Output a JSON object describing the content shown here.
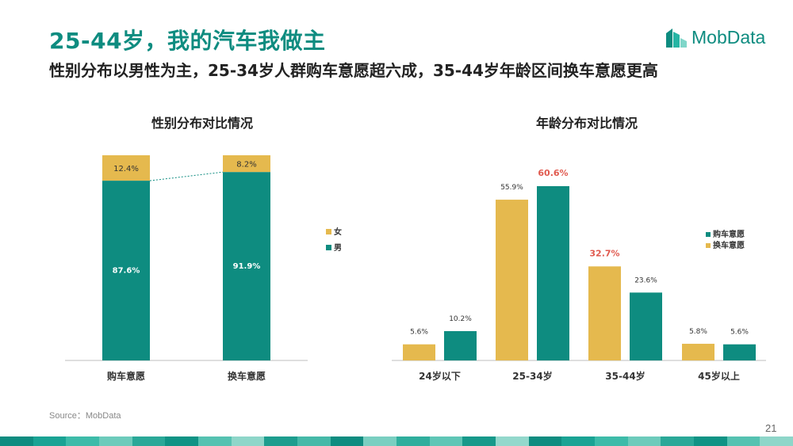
{
  "header": {
    "title": "25-44岁，我的汽车我做主",
    "subtitle": "性别分布以男性为主，25-34岁人群购车意愿超六成，35-44岁年龄区间换车意愿更高",
    "logo_text": "MobData"
  },
  "footer": {
    "source": "Source：MobData",
    "page_number": "21"
  },
  "colors": {
    "teal": "#0e8c80",
    "gold": "#e5b94e",
    "highlight_red": "#e05a4f"
  },
  "chart_data": [
    {
      "type": "bar",
      "stacked": true,
      "normalized": true,
      "title": "性别分布对比情况",
      "categories": [
        "购车意愿",
        "换车意愿"
      ],
      "series": [
        {
          "name": "男",
          "values": [
            87.6,
            91.9
          ],
          "labels": [
            "87.6%",
            "91.9%"
          ],
          "color": "#0e8c80"
        },
        {
          "name": "女",
          "values": [
            12.4,
            8.2
          ],
          "labels": [
            "12.4%",
            "8.2%"
          ],
          "color": "#e5b94e"
        }
      ],
      "legend": {
        "position": "right",
        "order": [
          "女",
          "男"
        ]
      },
      "connector_line": true,
      "grid": false
    },
    {
      "type": "bar",
      "title": "年龄分布对比情况",
      "categories": [
        "24岁以下",
        "25-34岁",
        "35-44岁",
        "45岁以上"
      ],
      "series": [
        {
          "name": "换车意愿",
          "values": [
            5.6,
            55.9,
            32.7,
            5.8
          ],
          "labels": [
            "5.6%",
            "55.9%",
            "32.7%",
            "5.8%"
          ],
          "color": "#e5b94e"
        },
        {
          "name": "购车意愿",
          "values": [
            10.2,
            60.6,
            23.6,
            5.6
          ],
          "labels": [
            "10.2%",
            "60.6%",
            "23.6%",
            "5.6%"
          ],
          "color": "#0e8c80"
        }
      ],
      "highlighted_labels": [
        "60.6%",
        "32.7%"
      ],
      "legend": {
        "position": "right",
        "order": [
          "购车意愿",
          "换车意愿"
        ]
      },
      "ylim": [
        0,
        70
      ],
      "grid": false
    }
  ]
}
